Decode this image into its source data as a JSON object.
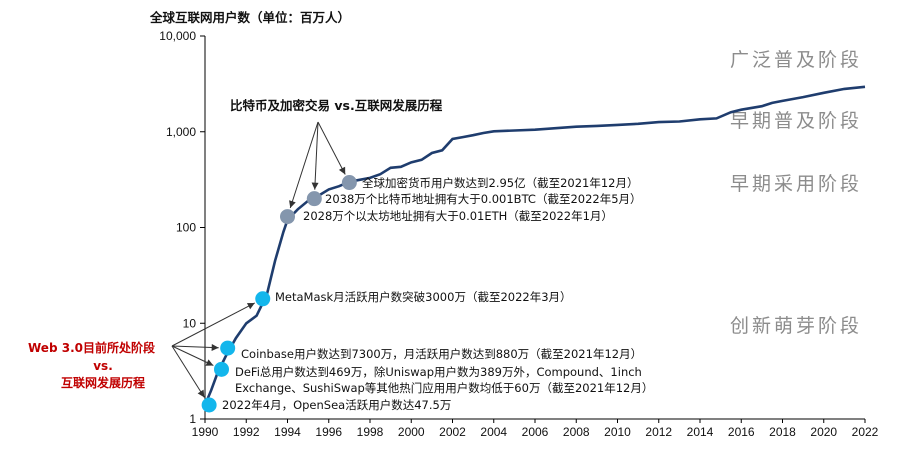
{
  "chart_data": {
    "type": "line",
    "title": "全球互联网用户数（单位：百万人）",
    "y_scale": "log",
    "ylim": [
      1,
      10000
    ],
    "xlim": [
      1990,
      2022
    ],
    "y_ticks": [
      "1",
      "10",
      "100",
      "1,000",
      "10,000"
    ],
    "x_ticks": [
      "1990",
      "1992",
      "1994",
      "1996",
      "1998",
      "2000",
      "2002",
      "2004",
      "2006",
      "2008",
      "2010",
      "2012",
      "2014",
      "2016",
      "2018",
      "2020",
      "2022"
    ],
    "line_color": "#1f3d6e",
    "series": [
      {
        "x": [
          1990,
          1990.3,
          1990.6,
          1991,
          1991.5,
          1992,
          1992.5,
          1993,
          1993.4,
          1993.8,
          1994,
          1994.5,
          1995,
          1995.5,
          1996,
          1996.5,
          1997,
          1997.5,
          1998,
          1998.5,
          1999,
          1999.5,
          2000,
          2000.5,
          2001,
          2001.5,
          2002,
          2002.5,
          2003,
          2003.5,
          2004,
          2005,
          2006,
          2007,
          2008,
          2009,
          2010,
          2011,
          2012,
          2013,
          2014,
          2014.8,
          2015.5,
          2016,
          2017,
          2017.5,
          2018,
          2019,
          2020,
          2021,
          2022
        ],
        "y": [
          1.4,
          2,
          3,
          4.5,
          7,
          10,
          12,
          20,
          45,
          90,
          120,
          155,
          190,
          215,
          250,
          270,
          300,
          315,
          330,
          360,
          420,
          430,
          480,
          510,
          600,
          640,
          840,
          880,
          920,
          970,
          1010,
          1030,
          1050,
          1090,
          1130,
          1150,
          1180,
          1210,
          1260,
          1280,
          1350,
          1380,
          1600,
          1700,
          1850,
          2000,
          2100,
          2300,
          2550,
          2800,
          2950
        ]
      }
    ],
    "stages": [
      "广泛普及阶段",
      "早期普及阶段",
      "早期采用阶段",
      "创新萌芽阶段"
    ],
    "group_titles": {
      "crypto": "比特币及加密交易 vs.互联网发展历程",
      "web3_line1": "Web 3.0目前所处阶段",
      "web3_line2": "vs.",
      "web3_line3": "互联网发展历程"
    },
    "crypto_points": [
      {
        "x": 1994,
        "y": 130,
        "label": "2028万个以太坊地址拥有大于0.01ETH（截至2022年1月）"
      },
      {
        "x": 1995.3,
        "y": 200,
        "label": "2038万个比特币地址拥有大于0.001BTC（截至2022年5月）"
      },
      {
        "x": 1997,
        "y": 295,
        "label": "全球加密货币用户数达到2.95亿（截至2021年12月）"
      }
    ],
    "web3_points": [
      {
        "x": 1990.2,
        "y": 1.4,
        "label": "2022年4月，OpenSea活跃用户数达47.5万"
      },
      {
        "x": 1990.8,
        "y": 3.3,
        "label_line1": "DeFi总用户数达到469万，除Uniswap用户数为389万外，Compound、1inch",
        "label_line2": "Exchange、SushiSwap等其他热门应用用户数均低于60万（截至2021年12月）"
      },
      {
        "x": 1991.1,
        "y": 5.5,
        "label": "Coinbase用户数达到7300万，月活跃用户数达到880万（截至2021年12月）"
      },
      {
        "x": 1992.8,
        "y": 18,
        "label": "MetaMask月活跃用户数突破3000万（截至2022年3月）"
      }
    ],
    "colors": {
      "crypto_marker": "#8496ad",
      "web3_marker": "#13b6ec",
      "red_text": "#c00000",
      "stage_text": "#8c8c8c"
    }
  }
}
